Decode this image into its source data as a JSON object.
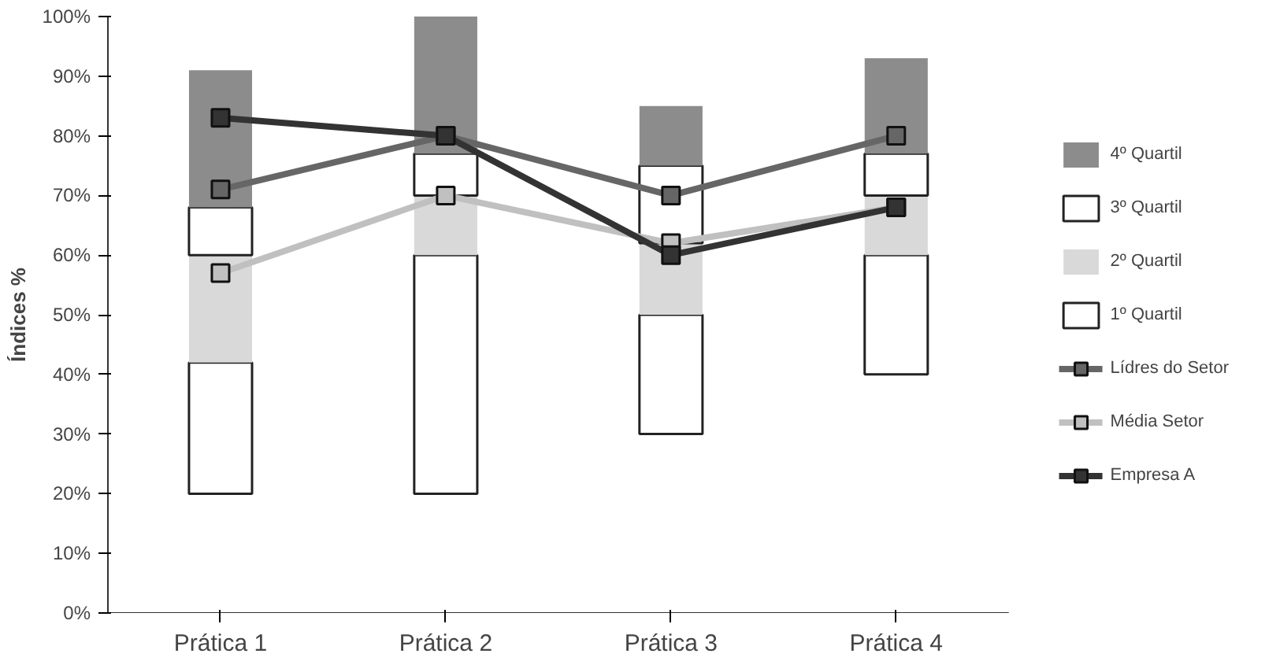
{
  "chart_data": {
    "type": "bar",
    "ylabel": "Índices %",
    "categories": [
      "Prática 1",
      "Prática 2",
      "Prática 3",
      "Prática 4"
    ],
    "series": [
      {
        "name": "1º Quartil",
        "color": "#ffffff",
        "base": [
          20,
          20,
          30,
          40
        ],
        "values": [
          22,
          40,
          20,
          20
        ]
      },
      {
        "name": "2º Quartil",
        "color": "#d9d9d9",
        "base": [
          42,
          60,
          50,
          60
        ],
        "values": [
          18,
          10,
          12,
          10
        ]
      },
      {
        "name": "3º Quartil",
        "color": "#ffffff",
        "base": [
          60,
          70,
          62,
          70
        ],
        "values": [
          8,
          7,
          13,
          7
        ]
      },
      {
        "name": "4º Quartil",
        "color": "#8c8c8c",
        "base": [
          68,
          77,
          75,
          77
        ],
        "values": [
          23,
          23,
          10,
          16
        ]
      },
      {
        "name": "Lídres do Setor",
        "type": "line",
        "color": "#666666",
        "values": [
          71,
          80,
          70,
          80
        ]
      },
      {
        "name": "Média Setor",
        "type": "line",
        "color": "#c0c0c0",
        "values": [
          57,
          70,
          62,
          68
        ]
      },
      {
        "name": "Empresa A",
        "type": "line",
        "color": "#333333",
        "values": [
          83,
          80,
          60,
          68
        ]
      }
    ],
    "ylim": [
      0,
      100
    ],
    "yticks": [
      {
        "value": 0,
        "label": "0%"
      },
      {
        "value": 10,
        "label": "10%"
      },
      {
        "value": 20,
        "label": "20%"
      },
      {
        "value": 30,
        "label": "30%"
      },
      {
        "value": 40,
        "label": "40%"
      },
      {
        "value": 50,
        "label": "50%"
      },
      {
        "value": 60,
        "label": "60%"
      },
      {
        "value": 70,
        "label": "70%"
      },
      {
        "value": 80,
        "label": "80%"
      },
      {
        "value": 90,
        "label": "90%"
      },
      {
        "value": 100,
        "label": "100%"
      }
    ],
    "grid": false,
    "legend": "right",
    "marker": "square",
    "line_style": "solid"
  }
}
